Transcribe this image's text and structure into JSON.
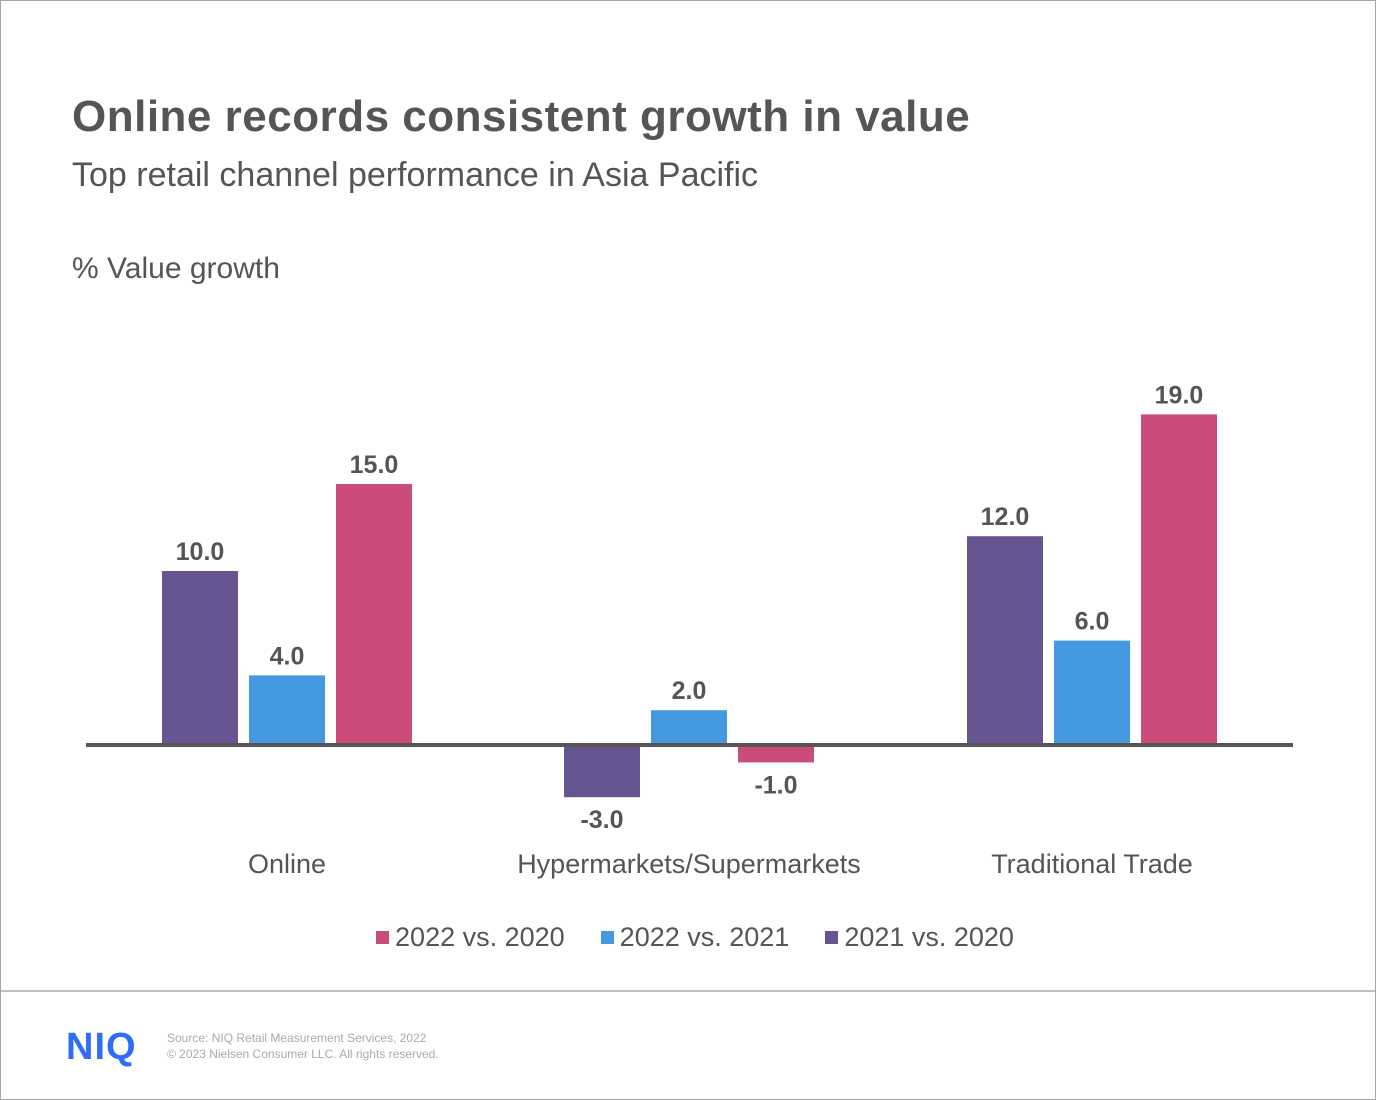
{
  "title": "Online records consistent growth in value",
  "subtitle": "Top retail channel performance in Asia Pacific",
  "footer": {
    "logo": "NIQ",
    "source": "Source: NIQ Retail Measurement Services, 2022",
    "copyright": "© 2023 Nielsen Consumer LLC. All rights reserved."
  },
  "chart_data": {
    "type": "bar",
    "ylabel": "% Value growth",
    "categories": [
      "Online",
      "Hypermarkets/Supermarkets",
      "Traditional Trade"
    ],
    "series": [
      {
        "name": "2021 vs. 2020",
        "color": "#665591",
        "values": [
          10.0,
          -3.0,
          12.0
        ],
        "labels": [
          "10.0",
          "-3.0",
          "12.0"
        ]
      },
      {
        "name": "2022 vs. 2021",
        "color": "#4499e1",
        "values": [
          4.0,
          2.0,
          6.0
        ],
        "labels": [
          "4.0",
          "2.0",
          "6.0"
        ]
      },
      {
        "name": "2022 vs. 2020",
        "color": "#cb4b7a",
        "values": [
          15.0,
          -1.0,
          19.0
        ],
        "labels": [
          "15.0",
          "-1.0",
          "19.0"
        ]
      }
    ],
    "legend_order": [
      2,
      1,
      0
    ],
    "legend_position": "bottom",
    "grid": false
  }
}
